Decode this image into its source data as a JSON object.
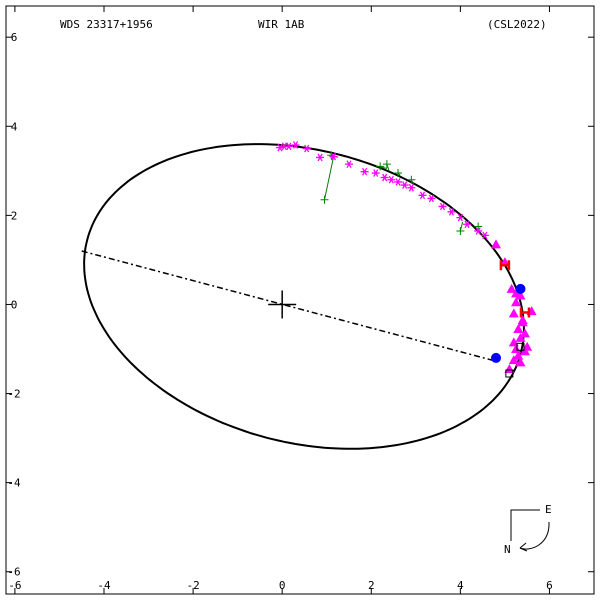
{
  "header": {
    "left": "WDS 23317+1956",
    "center": "WIR   1AB",
    "right": "(CSL2022)"
  },
  "compass": {
    "east": "E",
    "north": "N"
  },
  "colors": {
    "orbit": "#000000",
    "line_of_nodes": "#000000",
    "micrometer": "#008000",
    "speckle": "#ff00ff",
    "interferometry": "#ff00ff",
    "hst": "#ff0000",
    "periastron": "#0000ff"
  },
  "chart_data": {
    "type": "scatter",
    "title": "WDS 23317+1956",
    "xlim": [
      -6.2,
      7.0
    ],
    "ylim": [
      -6.5,
      6.7
    ],
    "x_ticks": [
      -6,
      -4,
      -2,
      0,
      2,
      4,
      6
    ],
    "y_ticks": [
      -6,
      -4,
      -2,
      0,
      2,
      4,
      6
    ],
    "x_tick_labels": [
      "-6",
      "-4",
      "-2",
      "0",
      "2",
      "4",
      "6"
    ],
    "y_tick_labels": [
      "-6",
      "-4",
      "-2",
      "0",
      "2",
      "4",
      "6"
    ],
    "grid": false,
    "primary": {
      "x": 0,
      "y": 0
    },
    "orbit": {
      "center_x": 0.49,
      "center_y": 0.18,
      "semi_major": 5.03,
      "semi_minor": 3.28,
      "angle_deg": -14.7
    },
    "line_of_nodes": {
      "x1": -4.5,
      "y1": 1.2,
      "x2": 4.9,
      "y2": -1.3
    },
    "series": [
      {
        "marker": "cross",
        "x": [
          0.95,
          1.1,
          2.2,
          2.35,
          2.6,
          2.9,
          4.0,
          4.4
        ],
        "y": [
          2.35,
          3.35,
          3.1,
          3.15,
          2.95,
          2.8,
          1.65,
          1.75
        ],
        "residuals_to": [
          [
            1.15,
            3.3
          ],
          [
            1.25,
            3.3
          ],
          [
            2.35,
            3.05
          ],
          [
            2.4,
            3.0
          ],
          [
            2.65,
            2.9
          ],
          [
            2.95,
            2.7
          ],
          [
            4.05,
            1.85
          ],
          [
            4.45,
            1.75
          ]
        ]
      },
      {
        "marker": "asterisk",
        "x": [
          -0.05,
          0.05,
          0.15,
          0.3,
          0.55,
          0.85,
          1.15,
          1.5,
          1.85,
          2.1,
          2.3,
          2.45,
          2.6,
          2.75,
          2.9,
          3.15,
          3.35,
          3.6,
          3.8,
          4.0,
          4.15,
          4.4,
          4.55
        ],
        "y": [
          3.52,
          3.55,
          3.55,
          3.58,
          3.5,
          3.3,
          3.32,
          3.15,
          2.98,
          2.95,
          2.85,
          2.8,
          2.75,
          2.68,
          2.62,
          2.45,
          2.38,
          2.2,
          2.08,
          1.95,
          1.8,
          1.65,
          1.55
        ]
      },
      {
        "marker": "triangle",
        "x": [
          4.8,
          5.0,
          5.15,
          5.25,
          5.35,
          5.2,
          5.4,
          5.6,
          5.3,
          5.45,
          5.35,
          5.2,
          5.5,
          5.25,
          5.45,
          5.3,
          5.2,
          5.35,
          5.1,
          5.4,
          5.25
        ],
        "y": [
          1.35,
          0.95,
          0.35,
          0.25,
          0.2,
          -0.2,
          -0.4,
          -0.15,
          -0.55,
          -0.65,
          -0.75,
          -0.85,
          -0.95,
          -1.0,
          -1.05,
          -1.15,
          -1.25,
          -1.3,
          -1.45,
          -0.35,
          0.05
        ]
      },
      {
        "marker": "H",
        "x": [
          5.0,
          5.45
        ],
        "y": [
          0.88,
          -0.18
        ]
      },
      {
        "marker": "filled-circle",
        "x": [
          5.35,
          4.8
        ],
        "y": [
          0.35,
          -1.2
        ]
      },
      {
        "marker": "open-square",
        "x": [
          5.35,
          5.1
        ],
        "y": [
          -0.95,
          -1.55
        ]
      }
    ]
  }
}
